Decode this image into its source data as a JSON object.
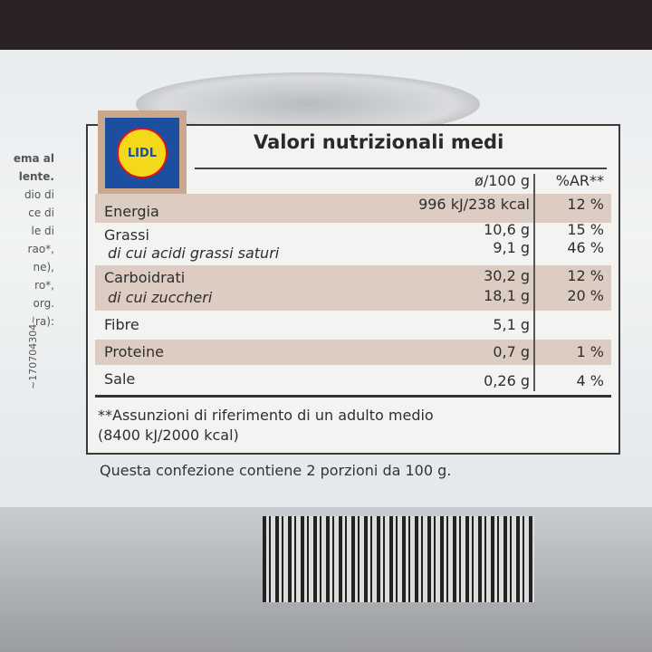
{
  "side_text": [
    "ema al",
    "lente.",
    "dio di",
    "ce di",
    "le di",
    "rao*,",
    "ne),",
    "ro*,",
    "org.",
    "ra):"
  ],
  "code": "~170704304~",
  "logo": "LIDL",
  "title": "Valori nutrizionali medi",
  "header": {
    "per100": "ø/100 g",
    "ar": "%AR**"
  },
  "rows": [
    {
      "label": "Energia",
      "value": "996 kJ/238 kcal",
      "ar": "12 %"
    },
    {
      "label": "Grassi",
      "value": "10,6 g",
      "ar": "15 %"
    },
    {
      "label": "di cui acidi grassi saturi",
      "value": "9,1 g",
      "ar": "46 %"
    },
    {
      "label": "Carboidrati",
      "value": "30,2 g",
      "ar": "12 %"
    },
    {
      "label": "di cui zuccheri",
      "value": "18,1 g",
      "ar": "20 %"
    },
    {
      "label": "Fibre",
      "value": "5,1 g",
      "ar": ""
    },
    {
      "label": "Proteine",
      "value": "0,7 g",
      "ar": "1 %"
    },
    {
      "label": "Sale",
      "value": "0,26 g",
      "ar": "4 %"
    }
  ],
  "footnote": [
    "**Assunzioni di riferimento di un adulto medio",
    "(8400 kJ/2000 kcal)"
  ],
  "note": "Questa confezione contiene 2 porzioni da 100 g."
}
